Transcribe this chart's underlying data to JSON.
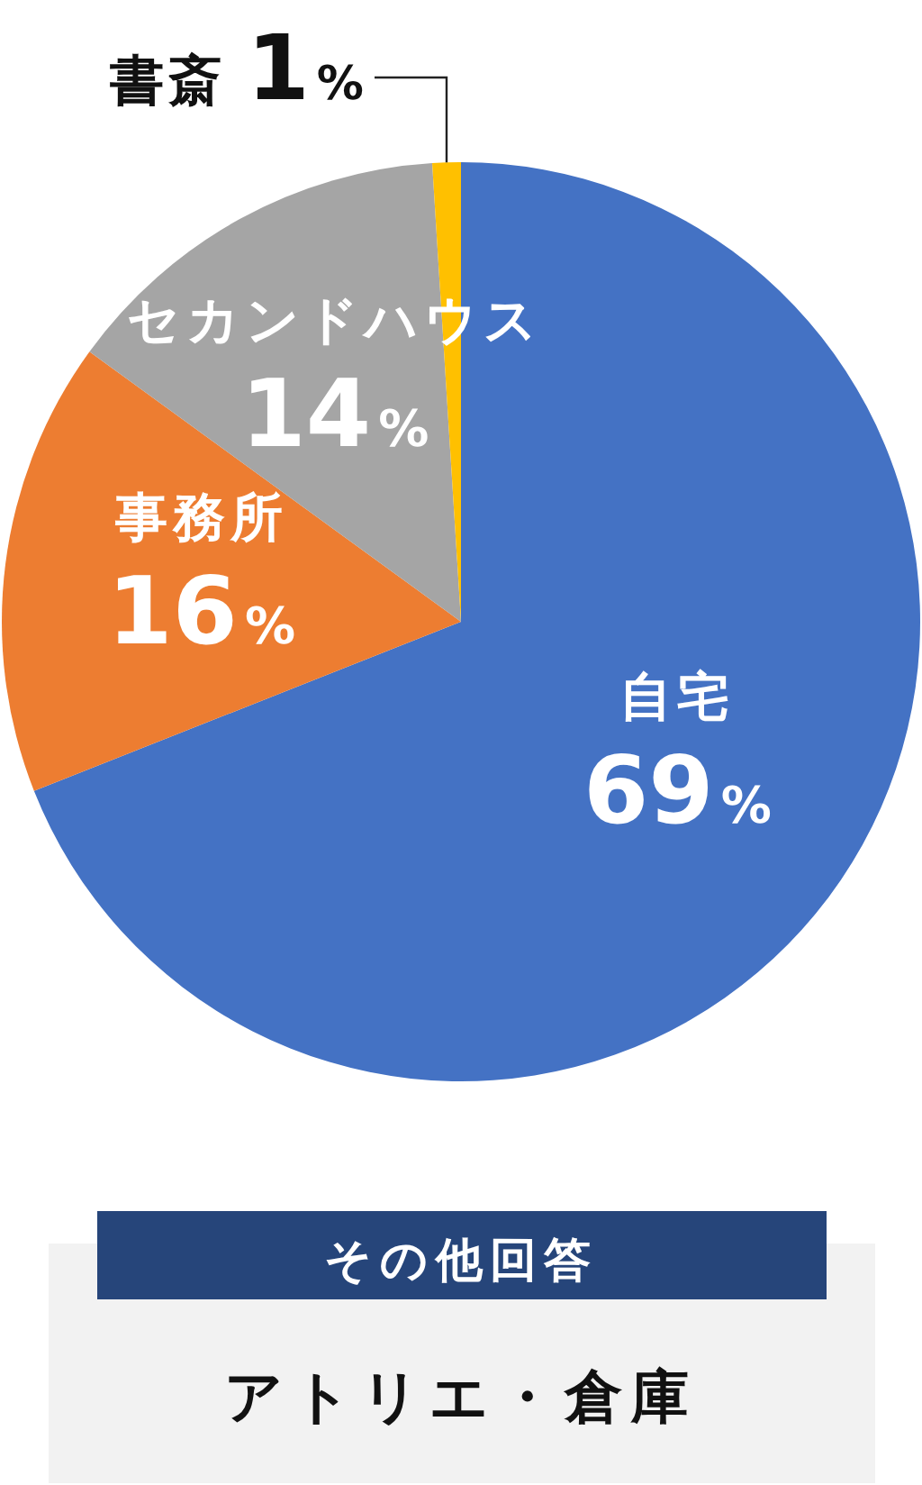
{
  "chart_data": [
    {
      "type": "pie",
      "categories": [
        "自宅",
        "事務所",
        "セカンドハウス",
        "書斎"
      ],
      "values": [
        69,
        16,
        14,
        1
      ],
      "colors": [
        "#4472c4",
        "#ed7d31",
        "#a5a5a5",
        "#ffc000"
      ],
      "value_labels": [
        "69%",
        "16%",
        "14%",
        "1%"
      ]
    },
    {
      "type": "other",
      "title": "その他回答",
      "annotations": [
        "アトリエ・倉庫"
      ]
    }
  ]
}
